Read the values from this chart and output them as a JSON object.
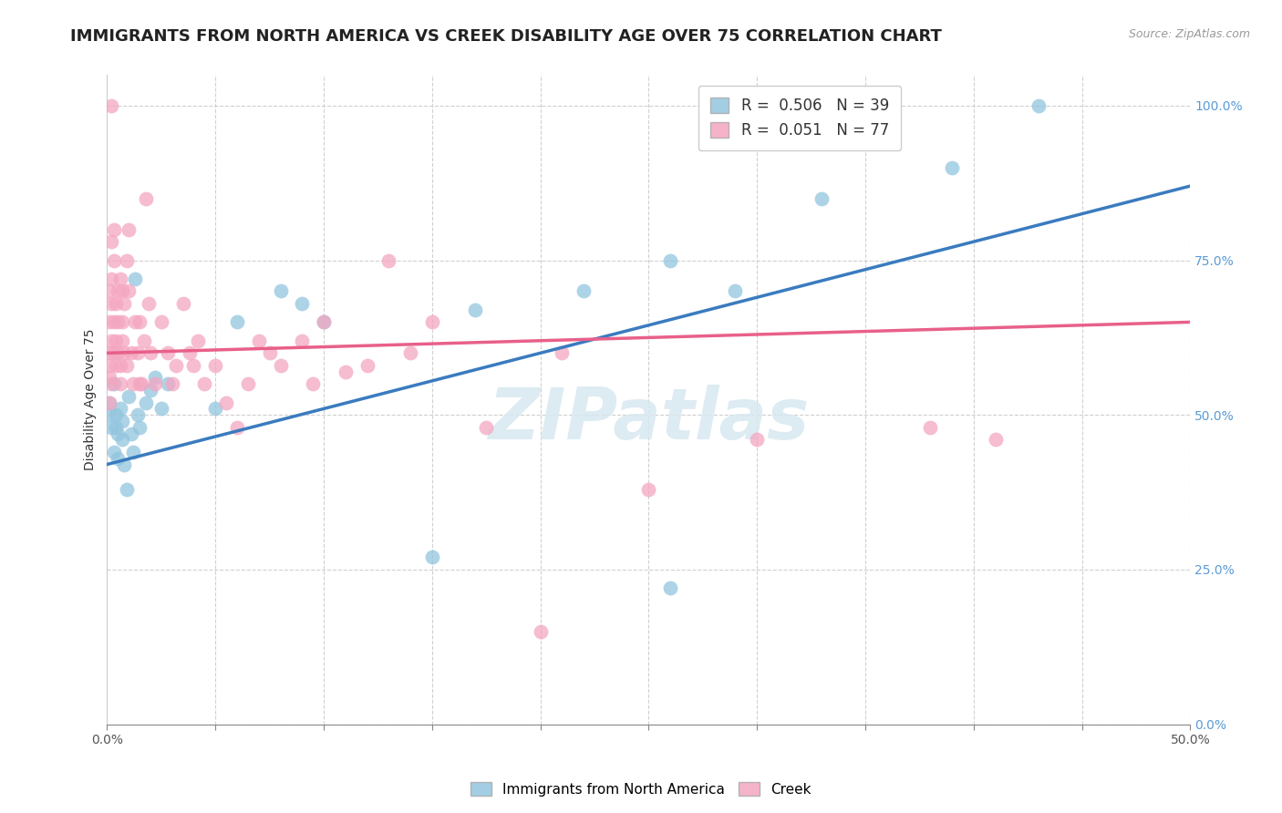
{
  "title": "IMMIGRANTS FROM NORTH AMERICA VS CREEK DISABILITY AGE OVER 75 CORRELATION CHART",
  "source": "Source: ZipAtlas.com",
  "ylabel": "Disability Age Over 75",
  "ylabel_right_ticks": [
    "0.0%",
    "25.0%",
    "50.0%",
    "75.0%",
    "100.0%"
  ],
  "ylabel_right_vals": [
    0.0,
    0.25,
    0.5,
    0.75,
    1.0
  ],
  "xlim": [
    0.0,
    0.5
  ],
  "ylim": [
    0.0,
    1.05
  ],
  "blue_R": 0.506,
  "blue_N": 39,
  "pink_R": 0.051,
  "pink_N": 77,
  "blue_color": "#92c5de",
  "pink_color": "#f4a6c0",
  "blue_line_color": "#3a7bbf",
  "pink_line_color": "#e8608a",
  "legend_label_blue": "Immigrants from North America",
  "legend_label_pink": "Creek",
  "watermark": "ZIPatlas",
  "title_fontsize": 13,
  "axis_fontsize": 10,
  "legend_fontsize": 12,
  "blue_scatter": [
    [
      0.001,
      0.52
    ],
    [
      0.001,
      0.5
    ],
    [
      0.002,
      0.48
    ],
    [
      0.003,
      0.55
    ],
    [
      0.003,
      0.44
    ],
    [
      0.004,
      0.5
    ],
    [
      0.004,
      0.48
    ],
    [
      0.005,
      0.47
    ],
    [
      0.005,
      0.43
    ],
    [
      0.006,
      0.51
    ],
    [
      0.007,
      0.49
    ],
    [
      0.007,
      0.46
    ],
    [
      0.008,
      0.42
    ],
    [
      0.009,
      0.38
    ],
    [
      0.01,
      0.53
    ],
    [
      0.011,
      0.47
    ],
    [
      0.012,
      0.44
    ],
    [
      0.013,
      0.72
    ],
    [
      0.014,
      0.5
    ],
    [
      0.015,
      0.48
    ],
    [
      0.018,
      0.52
    ],
    [
      0.02,
      0.54
    ],
    [
      0.022,
      0.56
    ],
    [
      0.025,
      0.51
    ],
    [
      0.028,
      0.55
    ],
    [
      0.05,
      0.51
    ],
    [
      0.06,
      0.65
    ],
    [
      0.08,
      0.7
    ],
    [
      0.09,
      0.68
    ],
    [
      0.1,
      0.65
    ],
    [
      0.15,
      0.27
    ],
    [
      0.17,
      0.67
    ],
    [
      0.22,
      0.7
    ],
    [
      0.26,
      0.75
    ],
    [
      0.29,
      0.7
    ],
    [
      0.33,
      0.85
    ],
    [
      0.39,
      0.9
    ],
    [
      0.43,
      1.0
    ],
    [
      0.26,
      0.22
    ]
  ],
  "pink_scatter": [
    [
      0.001,
      0.52
    ],
    [
      0.001,
      0.56
    ],
    [
      0.001,
      0.6
    ],
    [
      0.001,
      0.65
    ],
    [
      0.001,
      0.7
    ],
    [
      0.001,
      0.58
    ],
    [
      0.002,
      0.62
    ],
    [
      0.002,
      0.55
    ],
    [
      0.002,
      0.68
    ],
    [
      0.002,
      0.72
    ],
    [
      0.002,
      0.78
    ],
    [
      0.002,
      1.0
    ],
    [
      0.003,
      0.65
    ],
    [
      0.003,
      0.6
    ],
    [
      0.003,
      0.75
    ],
    [
      0.003,
      0.8
    ],
    [
      0.004,
      0.68
    ],
    [
      0.004,
      0.62
    ],
    [
      0.004,
      0.58
    ],
    [
      0.005,
      0.7
    ],
    [
      0.005,
      0.65
    ],
    [
      0.005,
      0.6
    ],
    [
      0.006,
      0.72
    ],
    [
      0.006,
      0.58
    ],
    [
      0.006,
      0.55
    ],
    [
      0.007,
      0.7
    ],
    [
      0.007,
      0.65
    ],
    [
      0.007,
      0.62
    ],
    [
      0.008,
      0.68
    ],
    [
      0.008,
      0.6
    ],
    [
      0.009,
      0.75
    ],
    [
      0.009,
      0.58
    ],
    [
      0.01,
      0.8
    ],
    [
      0.01,
      0.7
    ],
    [
      0.011,
      0.6
    ],
    [
      0.012,
      0.55
    ],
    [
      0.013,
      0.65
    ],
    [
      0.014,
      0.6
    ],
    [
      0.015,
      0.65
    ],
    [
      0.015,
      0.55
    ],
    [
      0.016,
      0.55
    ],
    [
      0.017,
      0.62
    ],
    [
      0.018,
      0.85
    ],
    [
      0.019,
      0.68
    ],
    [
      0.02,
      0.6
    ],
    [
      0.022,
      0.55
    ],
    [
      0.025,
      0.65
    ],
    [
      0.028,
      0.6
    ],
    [
      0.03,
      0.55
    ],
    [
      0.032,
      0.58
    ],
    [
      0.035,
      0.68
    ],
    [
      0.038,
      0.6
    ],
    [
      0.04,
      0.58
    ],
    [
      0.042,
      0.62
    ],
    [
      0.045,
      0.55
    ],
    [
      0.05,
      0.58
    ],
    [
      0.055,
      0.52
    ],
    [
      0.06,
      0.48
    ],
    [
      0.065,
      0.55
    ],
    [
      0.07,
      0.62
    ],
    [
      0.075,
      0.6
    ],
    [
      0.08,
      0.58
    ],
    [
      0.09,
      0.62
    ],
    [
      0.095,
      0.55
    ],
    [
      0.1,
      0.65
    ],
    [
      0.11,
      0.57
    ],
    [
      0.12,
      0.58
    ],
    [
      0.13,
      0.75
    ],
    [
      0.14,
      0.6
    ],
    [
      0.15,
      0.65
    ],
    [
      0.175,
      0.48
    ],
    [
      0.2,
      0.15
    ],
    [
      0.21,
      0.6
    ],
    [
      0.25,
      0.38
    ],
    [
      0.3,
      0.46
    ],
    [
      0.38,
      0.48
    ],
    [
      0.41,
      0.46
    ]
  ]
}
